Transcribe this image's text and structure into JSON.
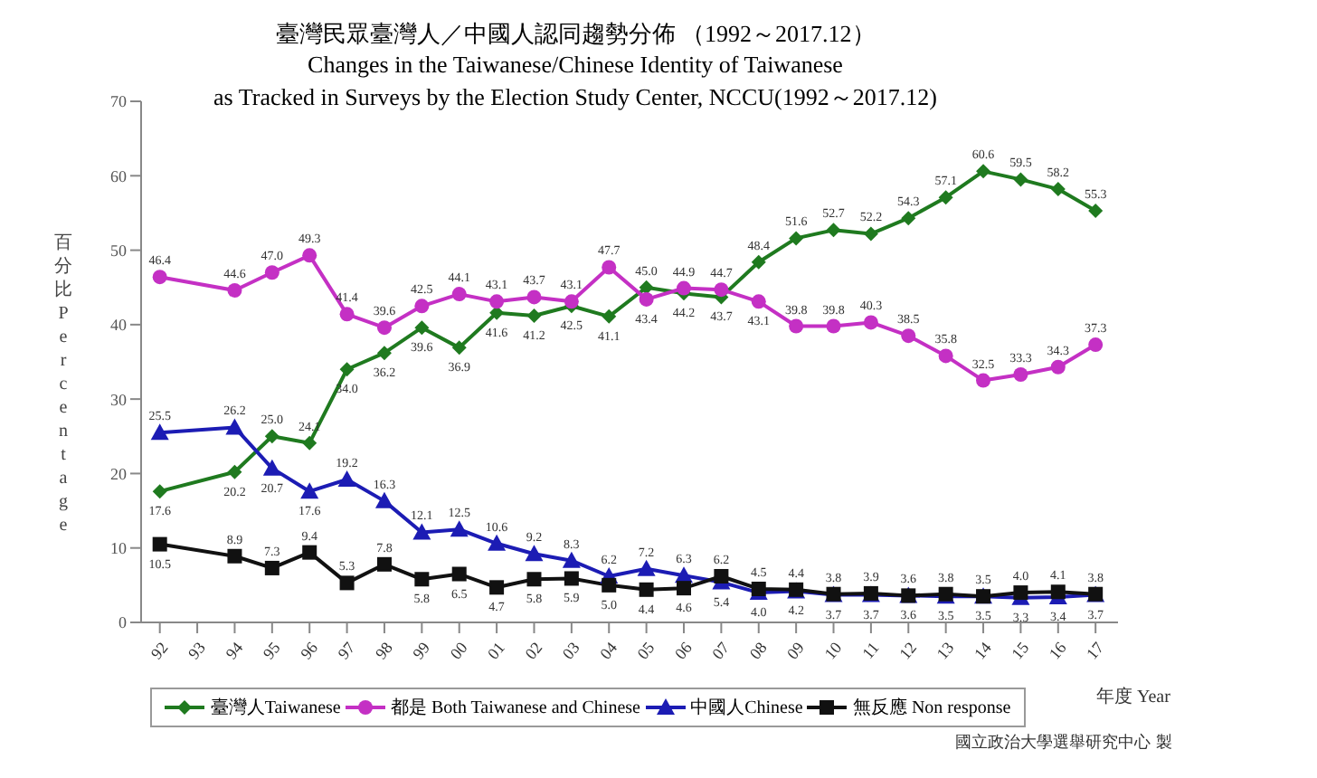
{
  "chart_data": {
    "type": "line",
    "title": "臺灣民眾臺灣人／中國人認同趨勢分佈 （1992～2017.12）",
    "subtitle": "Changes in the Taiwanese/Chinese Identity of Taiwanese\nas Tracked in Surveys by the Election Study Center, NCCU(1992～2017.12)",
    "xlabel": "年度 Year",
    "ylabel": "百分比 Percentage",
    "annotations": [
      "國立政治大學選舉研究中心 製"
    ],
    "x": [
      1992,
      1994,
      1995,
      1996,
      1997,
      1998,
      1999,
      2000,
      2001,
      2002,
      2003,
      2004,
      2005,
      2006,
      2007,
      2008,
      2009,
      2010,
      2011,
      2012,
      2013,
      2014,
      2015,
      2016,
      2017
    ],
    "series": [
      {
        "name": "臺灣人Taiwanese",
        "color": "#1f7a1f",
        "marker": "diamond",
        "values": [
          17.6,
          20.2,
          25.0,
          24.1,
          34.0,
          36.2,
          39.6,
          36.9,
          41.6,
          41.2,
          42.5,
          41.1,
          45.0,
          44.2,
          43.7,
          48.4,
          51.6,
          52.7,
          52.2,
          54.3,
          57.1,
          60.6,
          59.5,
          58.2,
          55.3
        ],
        "value_labels": [
          "17.6",
          "20.2",
          "25.0",
          "24.1",
          "34.0",
          "36.2",
          "39.6",
          "36.9",
          "41.6",
          "41.2",
          "42.5",
          "41.1",
          "45.0",
          "44.2",
          "43.7",
          "48.4",
          "51.6",
          "52.7",
          "52.2",
          "54.3",
          "57.1",
          "60.6",
          "59.5",
          "58.2",
          "55.3"
        ]
      },
      {
        "name": "都是 Both Taiwanese and Chinese",
        "color": "#c430c4",
        "marker": "circle",
        "values": [
          46.4,
          44.6,
          47.0,
          49.3,
          41.4,
          39.6,
          42.5,
          44.1,
          43.1,
          43.7,
          43.1,
          47.7,
          43.4,
          44.9,
          44.7,
          43.1,
          39.8,
          39.8,
          40.3,
          38.5,
          35.8,
          32.5,
          33.3,
          34.3,
          37.3
        ],
        "value_labels": [
          "46.4",
          "44.6",
          "47.0",
          "49.3",
          "41.4",
          "39.6",
          "42.5",
          "44.1",
          "43.1",
          "43.7",
          "43.1",
          "47.7",
          "43.4",
          "44.9",
          "44.7",
          "43.1",
          "39.8",
          "39.8",
          "40.3",
          "38.5",
          "35.8",
          "32.5",
          "33.3",
          "34.3",
          "37.3"
        ]
      },
      {
        "name": "中國人Chinese",
        "color": "#1c1cb4",
        "marker": "triangle",
        "values": [
          25.5,
          26.2,
          20.7,
          17.6,
          19.2,
          16.3,
          12.1,
          12.5,
          10.6,
          9.2,
          8.3,
          6.2,
          7.2,
          6.3,
          5.4,
          4.0,
          4.2,
          3.7,
          3.7,
          3.6,
          3.5,
          3.5,
          3.3,
          3.4,
          3.7
        ],
        "value_labels": [
          "25.5",
          "26.2",
          "20.7",
          "17.6",
          "19.2",
          "16.3",
          "12.1",
          "12.5",
          "10.6",
          "9.2",
          "8.3",
          "6.2",
          "7.2",
          "6.3",
          "5.4",
          "4.0",
          "4.2",
          "3.7",
          "3.7",
          "3.6",
          "3.5",
          "3.5",
          "3.3",
          "3.4",
          "3.7"
        ]
      },
      {
        "name": "無反應 Non response",
        "color": "#111111",
        "marker": "square",
        "values": [
          10.5,
          8.9,
          7.3,
          9.4,
          5.3,
          7.8,
          5.8,
          6.5,
          4.7,
          5.8,
          5.9,
          5.0,
          4.4,
          4.6,
          6.2,
          4.5,
          4.4,
          3.8,
          3.9,
          3.6,
          3.8,
          3.5,
          4.0,
          4.1,
          3.8
        ],
        "value_labels": [
          "10.5",
          "8.9",
          "7.3",
          "9.4",
          "5.3",
          "7.8",
          "5.8",
          "6.5",
          "4.7",
          "5.8",
          "5.9",
          "5.0",
          "4.4",
          "4.6",
          "6.2",
          "4.5",
          "4.4",
          "3.8",
          "3.9",
          "3.6",
          "3.8",
          "3.5",
          "4.0",
          "4.1",
          "3.8"
        ]
      }
    ],
    "xlim": [
      1991.5,
      2017.6
    ],
    "xticks": [
      {
        "value": 1992,
        "label": "92"
      },
      {
        "value": 1993,
        "label": "93"
      },
      {
        "value": 1994,
        "label": "94"
      },
      {
        "value": 1995,
        "label": "95"
      },
      {
        "value": 1996,
        "label": "96"
      },
      {
        "value": 1997,
        "label": "97"
      },
      {
        "value": 1998,
        "label": "98"
      },
      {
        "value": 1999,
        "label": "99"
      },
      {
        "value": 2000,
        "label": "00"
      },
      {
        "value": 2001,
        "label": "01"
      },
      {
        "value": 2002,
        "label": "02"
      },
      {
        "value": 2003,
        "label": "03"
      },
      {
        "value": 2004,
        "label": "04"
      },
      {
        "value": 2005,
        "label": "05"
      },
      {
        "value": 2006,
        "label": "06"
      },
      {
        "value": 2007,
        "label": "07"
      },
      {
        "value": 2008,
        "label": "08"
      },
      {
        "value": 2009,
        "label": "09"
      },
      {
        "value": 2010,
        "label": "10"
      },
      {
        "value": 2011,
        "label": "11"
      },
      {
        "value": 2012,
        "label": "12"
      },
      {
        "value": 2013,
        "label": "13"
      },
      {
        "value": 2014,
        "label": "14"
      },
      {
        "value": 2015,
        "label": "15"
      },
      {
        "value": 2016,
        "label": "16"
      },
      {
        "value": 2017,
        "label": "17"
      }
    ],
    "ylim": [
      0,
      70
    ],
    "yticks": [
      0,
      10,
      20,
      30,
      40,
      50,
      60,
      70
    ],
    "grid": false,
    "legend": "bottom"
  }
}
